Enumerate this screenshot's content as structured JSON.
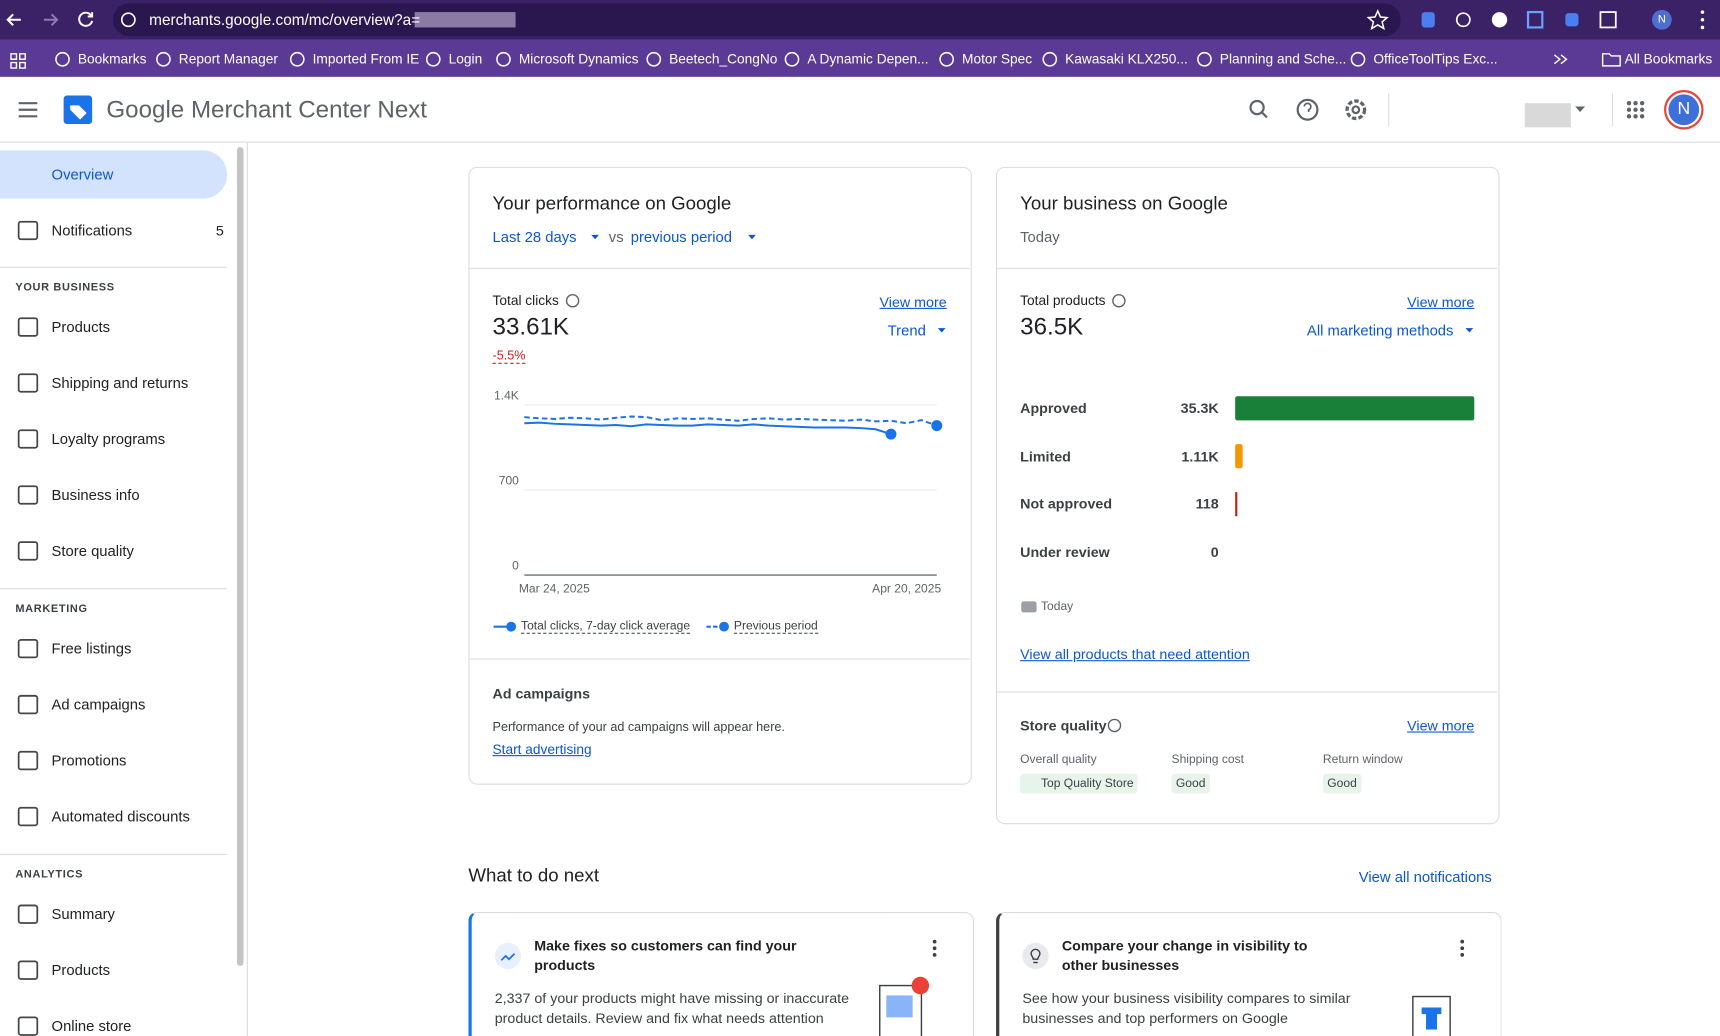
{
  "browser": {
    "url": "merchants.google.com/mc/overview?a=",
    "bookmarks": [
      "Bookmarks",
      "Report Manager",
      "Imported From IE",
      "Login",
      "Microsoft Dynamics",
      "Beetech_CongNo",
      "A Dynamic Depen...",
      "Motor Spec",
      "Kawasaki KLX250...",
      "Planning and Sche...",
      "OfficeToolTips Exc..."
    ],
    "all_bookmarks": "All Bookmarks",
    "profile": "N"
  },
  "header": {
    "brand": "Google",
    "product": "Merchant Center Next",
    "avatar": "N"
  },
  "sidebar": {
    "top": [
      {
        "label": "Overview",
        "selected": true
      },
      {
        "label": "Notifications",
        "badge": 5
      }
    ],
    "groups": [
      {
        "heading": "YOUR BUSINESS",
        "items": [
          "Products",
          "Shipping and returns",
          "Loyalty programs",
          "Business info",
          "Store quality"
        ]
      },
      {
        "heading": "MARKETING",
        "items": [
          "Free listings",
          "Ad campaigns",
          "Promotions",
          "Automated discounts"
        ]
      },
      {
        "heading": "ANALYTICS",
        "items": [
          "Summary",
          "Products",
          "Online store"
        ]
      }
    ]
  },
  "performance": {
    "title": "Your performance on Google",
    "period": "Last 28 days",
    "vs": "vs",
    "comparison": "previous period",
    "metric": "Total clicks",
    "view_more": "View more",
    "value": "33.61K",
    "change": "-5.5%",
    "view": "Trend",
    "chart": {
      "type": "line",
      "categories": [
        "Mar 24, 2025",
        null,
        null,
        null,
        null,
        null,
        null,
        null,
        null,
        null,
        null,
        null,
        null,
        null,
        null,
        null,
        null,
        null,
        null,
        null,
        null,
        null,
        null,
        null,
        null,
        null,
        null,
        "Apr 20, 2025"
      ],
      "series": [
        {
          "name": "Total clicks, 7-day click average",
          "color": "#1a73e8",
          "style": "solid",
          "values": [
            1250,
            1255,
            1245,
            1240,
            1235,
            1230,
            1235,
            1225,
            1240,
            1235,
            1230,
            1230,
            1240,
            1235,
            1230,
            1240,
            1230,
            1225,
            1220,
            1215,
            1215,
            1215,
            1210,
            1200,
            1160,
            null,
            null,
            null
          ]
        },
        {
          "name": "Previous period",
          "color": "#1a73e8",
          "style": "dashed",
          "values": [
            1300,
            1290,
            1285,
            1295,
            1290,
            1280,
            1295,
            1305,
            1300,
            1275,
            1290,
            1285,
            1290,
            1280,
            1270,
            1285,
            1290,
            1280,
            1285,
            1280,
            1275,
            1270,
            1280,
            1265,
            1270,
            1250,
            1275,
            1230
          ]
        }
      ],
      "ylim": [
        0,
        1400
      ],
      "yticks": [
        0,
        700,
        {
          "value": 1400,
          "label": "1.4K"
        }
      ],
      "grid": true
    },
    "ad_campaigns": {
      "title": "Ad campaigns",
      "text": "Performance of your ad campaigns will appear here.",
      "link": "Start advertising"
    }
  },
  "business": {
    "title": "Your business on Google",
    "subtitle": "Today",
    "metric": "Total products",
    "view_more": "View more",
    "value": "36.5K",
    "filter": "All marketing methods",
    "statuses": {
      "type": "bar",
      "categories": [
        "Approved",
        "Limited",
        "Not approved",
        "Under review"
      ],
      "values": [
        35300,
        1110,
        118,
        0
      ],
      "value_labels": [
        "35.3K",
        "1.11K",
        "118",
        "0"
      ],
      "colors": [
        "#188038",
        "#f29900",
        "#c5221f",
        "#9aa0a6"
      ]
    },
    "legend": "Today",
    "link": "View all products that need attention",
    "store_quality": {
      "title": "Store quality",
      "view_more": "View more",
      "columns": [
        {
          "label": "Overall quality",
          "value": "Top Quality Store"
        },
        {
          "label": "Shipping cost",
          "value": "Good"
        },
        {
          "label": "Return window",
          "value": "Good"
        }
      ]
    }
  },
  "next": {
    "title": "What to do next",
    "link": "View all notifications",
    "cards": [
      {
        "title": "Make fixes so customers can find your products",
        "text": "2,337 of your products might have missing or inaccurate product details. Review and fix what needs attention"
      },
      {
        "title": "Compare your change in visibility to other businesses",
        "text": "See how your business visibility compares to similar businesses and top performers on Google"
      }
    ]
  }
}
